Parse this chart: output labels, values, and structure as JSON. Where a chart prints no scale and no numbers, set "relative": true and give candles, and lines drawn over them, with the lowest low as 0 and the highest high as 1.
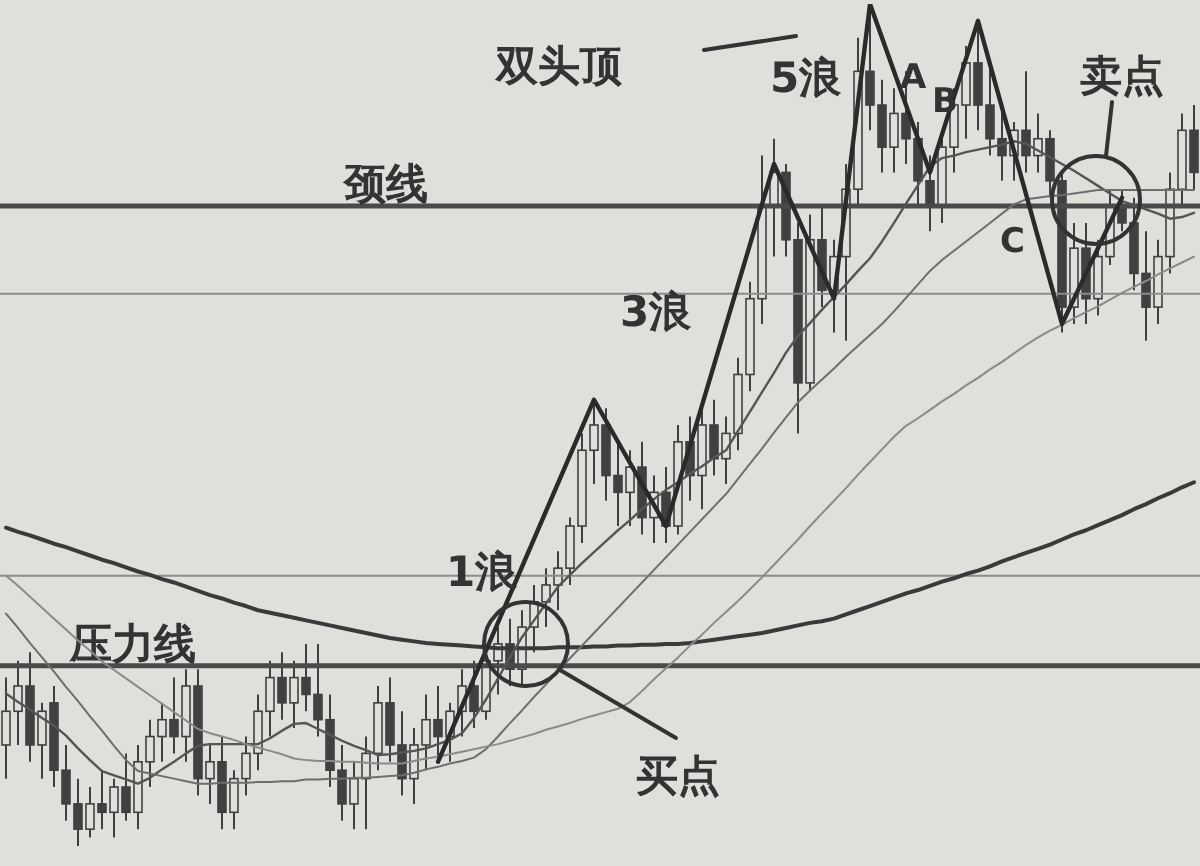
{
  "chart_data": {
    "type": "candlestick",
    "relative": true,
    "tick_labels": false,
    "color": "#404040",
    "categories": [
      null,
      null,
      null,
      null,
      null,
      null,
      null,
      null,
      null,
      null,
      null,
      null,
      null,
      null,
      null,
      null,
      null,
      null,
      null,
      null,
      null,
      null,
      null,
      null,
      null,
      null,
      null,
      null,
      null,
      null,
      null,
      null,
      null,
      null,
      null,
      null,
      null,
      null,
      null,
      null,
      null,
      null,
      null,
      null,
      null,
      null,
      null,
      null,
      null,
      null,
      null,
      null,
      null,
      null,
      null,
      null,
      null,
      null,
      null,
      null,
      null,
      null,
      null,
      null,
      null,
      null,
      null,
      null,
      null,
      null,
      null,
      null,
      null,
      null,
      null,
      null,
      null,
      null,
      null,
      null,
      null,
      null,
      null,
      null,
      null,
      null,
      null,
      null,
      null,
      null,
      null,
      null,
      null,
      null,
      null,
      null,
      null,
      null,
      null,
      null
    ],
    "ohlc": [
      [
        0.12,
        0.2,
        0.08,
        0.16
      ],
      [
        0.16,
        0.22,
        0.12,
        0.19
      ],
      [
        0.19,
        0.23,
        0.1,
        0.12
      ],
      [
        0.12,
        0.17,
        0.08,
        0.16
      ],
      [
        0.17,
        0.19,
        0.07,
        0.09
      ],
      [
        0.09,
        0.12,
        0.03,
        0.05
      ],
      [
        0.05,
        0.08,
        0,
        0.02
      ],
      [
        0.02,
        0.07,
        0.01,
        0.05
      ],
      [
        0.05,
        0.09,
        0.02,
        0.04
      ],
      [
        0.04,
        0.08,
        0.01,
        0.07
      ],
      [
        0.07,
        0.11,
        0.03,
        0.04
      ],
      [
        0.04,
        0.12,
        0.02,
        0.1
      ],
      [
        0.1,
        0.15,
        0.07,
        0.13
      ],
      [
        0.13,
        0.17,
        0.1,
        0.15
      ],
      [
        0.15,
        0.2,
        0.11,
        0.13
      ],
      [
        0.13,
        0.21,
        0.1,
        0.19
      ],
      [
        0.19,
        0.21,
        0.06,
        0.08
      ],
      [
        0.08,
        0.12,
        0.05,
        0.1
      ],
      [
        0.1,
        0.13,
        0.02,
        0.04
      ],
      [
        0.04,
        0.09,
        0.02,
        0.08
      ],
      [
        0.08,
        0.13,
        0.06,
        0.11
      ],
      [
        0.11,
        0.18,
        0.09,
        0.16
      ],
      [
        0.16,
        0.22,
        0.13,
        0.2
      ],
      [
        0.2,
        0.23,
        0.15,
        0.17
      ],
      [
        0.17,
        0.22,
        0.14,
        0.2
      ],
      [
        0.2,
        0.24,
        0.16,
        0.18
      ],
      [
        0.18,
        0.24,
        0.13,
        0.15
      ],
      [
        0.15,
        0.18,
        0.07,
        0.09
      ],
      [
        0.09,
        0.12,
        0.03,
        0.05
      ],
      [
        0.05,
        0.1,
        0.02,
        0.08
      ],
      [
        0.08,
        0.13,
        0.02,
        0.11
      ],
      [
        0.11,
        0.19,
        0.09,
        0.17
      ],
      [
        0.17,
        0.2,
        0.1,
        0.12
      ],
      [
        0.12,
        0.16,
        0.06,
        0.08
      ],
      [
        0.08,
        0.14,
        0.05,
        0.12
      ],
      [
        0.12,
        0.18,
        0.09,
        0.15
      ],
      [
        0.15,
        0.19,
        0.1,
        0.13
      ],
      [
        0.13,
        0.17,
        0.1,
        0.16
      ],
      [
        0.16,
        0.21,
        0.13,
        0.19
      ],
      [
        0.19,
        0.22,
        0.14,
        0.16
      ],
      [
        0.16,
        0.23,
        0.15,
        0.22
      ],
      [
        0.22,
        0.26,
        0.18,
        0.24
      ],
      [
        0.24,
        0.27,
        0.19,
        0.21
      ],
      [
        0.21,
        0.28,
        0.19,
        0.26
      ],
      [
        0.26,
        0.31,
        0.23,
        0.29
      ],
      [
        0.29,
        0.33,
        0.26,
        0.31
      ],
      [
        0.31,
        0.35,
        0.28,
        0.33
      ],
      [
        0.33,
        0.39,
        0.31,
        0.38
      ],
      [
        0.38,
        0.49,
        0.36,
        0.47
      ],
      [
        0.47,
        0.53,
        0.43,
        0.5
      ],
      [
        0.5,
        0.52,
        0.41,
        0.44
      ],
      [
        0.44,
        0.48,
        0.38,
        0.42
      ],
      [
        0.42,
        0.47,
        0.38,
        0.45
      ],
      [
        0.45,
        0.48,
        0.37,
        0.39
      ],
      [
        0.39,
        0.44,
        0.36,
        0.42
      ],
      [
        0.42,
        0.45,
        0.36,
        0.38
      ],
      [
        0.38,
        0.5,
        0.37,
        0.48
      ],
      [
        0.48,
        0.51,
        0.41,
        0.44
      ],
      [
        0.44,
        0.52,
        0.4,
        0.5
      ],
      [
        0.5,
        0.53,
        0.44,
        0.46
      ],
      [
        0.46,
        0.51,
        0.43,
        0.49
      ],
      [
        0.49,
        0.58,
        0.47,
        0.56
      ],
      [
        0.56,
        0.67,
        0.54,
        0.65
      ],
      [
        0.65,
        0.82,
        0.62,
        0.76
      ],
      [
        0.76,
        0.84,
        0.7,
        0.8
      ],
      [
        0.8,
        0.81,
        0.7,
        0.72
      ],
      [
        0.72,
        0.74,
        0.49,
        0.55
      ],
      [
        0.55,
        0.75,
        0.54,
        0.72
      ],
      [
        0.72,
        0.76,
        0.64,
        0.66
      ],
      [
        0.66,
        0.72,
        0.61,
        0.7
      ],
      [
        0.7,
        0.81,
        0.6,
        0.78
      ],
      [
        0.78,
        0.96,
        0.76,
        0.92
      ],
      [
        0.92,
        1,
        0.85,
        0.88
      ],
      [
        0.88,
        0.91,
        0.8,
        0.83
      ],
      [
        0.83,
        0.9,
        0.8,
        0.87
      ],
      [
        0.87,
        0.92,
        0.81,
        0.84
      ],
      [
        0.84,
        0.86,
        0.76,
        0.79
      ],
      [
        0.79,
        0.82,
        0.73,
        0.76
      ],
      [
        0.76,
        0.84,
        0.74,
        0.83
      ],
      [
        0.83,
        0.9,
        0.8,
        0.88
      ],
      [
        0.88,
        0.95,
        0.84,
        0.93
      ],
      [
        0.93,
        0.98,
        0.85,
        0.88
      ],
      [
        0.88,
        0.93,
        0.82,
        0.84
      ],
      [
        0.84,
        0.88,
        0.79,
        0.82
      ],
      [
        0.82,
        0.86,
        0.79,
        0.85
      ],
      [
        0.85,
        0.92,
        0.8,
        0.82
      ],
      [
        0.82,
        0.87,
        0.8,
        0.84
      ],
      [
        0.84,
        0.85,
        0.77,
        0.79
      ],
      [
        0.79,
        0.8,
        0.61,
        0.64
      ],
      [
        0.64,
        0.74,
        0.62,
        0.71
      ],
      [
        0.71,
        0.74,
        0.62,
        0.65
      ],
      [
        0.65,
        0.72,
        0.63,
        0.7
      ],
      [
        0.7,
        0.78,
        0.69,
        0.76
      ],
      [
        0.76,
        0.78,
        0.73,
        0.74
      ],
      [
        0.74,
        0.77,
        0.66,
        0.68
      ],
      [
        0.68,
        0.73,
        0.6,
        0.64
      ],
      [
        0.64,
        0.72,
        0.62,
        0.7
      ],
      [
        0.7,
        0.8,
        0.68,
        0.78
      ],
      [
        0.78,
        0.87,
        0.76,
        0.85
      ],
      [
        0.85,
        0.88,
        0.78,
        0.8
      ]
    ],
    "series": [
      {
        "type": "line",
        "color": "#3a3a3a",
        "values": [
          0.378,
          0.373,
          0.369,
          0.364,
          0.359,
          0.355,
          0.35,
          0.345,
          0.34,
          0.336,
          0.331,
          0.326,
          0.322,
          0.317,
          0.313,
          0.308,
          0.303,
          0.298,
          0.294,
          0.289,
          0.285,
          0.28,
          0.277,
          0.274,
          0.271,
          0.268,
          0.265,
          0.262,
          0.259,
          0.256,
          0.253,
          0.25,
          0.247,
          0.245,
          0.243,
          0.241,
          0.24,
          0.239,
          0.238,
          0.237,
          0.236,
          0.235,
          0.235,
          0.235,
          0.235,
          0.235,
          0.236,
          0.236,
          0.236,
          0.237,
          0.237,
          0.238,
          0.238,
          0.239,
          0.239,
          0.24,
          0.24,
          0.241,
          0.243,
          0.245,
          0.247,
          0.249,
          0.251,
          0.253,
          0.256,
          0.259,
          0.262,
          0.265,
          0.267,
          0.27,
          0.275,
          0.28,
          0.285,
          0.29,
          0.295,
          0.3,
          0.304,
          0.309,
          0.314,
          0.318,
          0.323,
          0.327,
          0.332,
          0.338,
          0.343,
          0.348,
          0.353,
          0.358,
          0.364,
          0.37,
          0.375,
          0.381,
          0.387,
          0.393,
          0.4,
          0.406,
          0.413,
          0.419,
          0.426,
          0.432
        ]
      },
      {
        "type": "line",
        "color": "#555555",
        "values": [
          0.181,
          0.171,
          0.162,
          0.152,
          0.143,
          0.131,
          0.116,
          0.102,
          0.089,
          0.084,
          0.079,
          0.074,
          0.081,
          0.091,
          0.1,
          0.11,
          0.119,
          0.121,
          0.121,
          0.121,
          0.121,
          0.121,
          0.128,
          0.137,
          0.145,
          0.146,
          0.139,
          0.132,
          0.125,
          0.119,
          0.114,
          0.108,
          0.109,
          0.111,
          0.113,
          0.116,
          0.121,
          0.126,
          0.134,
          0.152,
          0.174,
          0.199,
          0.224,
          0.248,
          0.268,
          0.288,
          0.308,
          0.322,
          0.336,
          0.349,
          0.362,
          0.375,
          0.387,
          0.4,
          0.412,
          0.423,
          0.432,
          0.442,
          0.451,
          0.461,
          0.47,
          0.493,
          0.516,
          0.539,
          0.562,
          0.586,
          0.606,
          0.621,
          0.637,
          0.652,
          0.667,
          0.683,
          0.698,
          0.718,
          0.74,
          0.763,
          0.785,
          0.807,
          0.817,
          0.82,
          0.824,
          0.827,
          0.83,
          0.833,
          0.837,
          0.834,
          0.826,
          0.818,
          0.81,
          0.802,
          0.793,
          0.784,
          0.775,
          0.766,
          0.761,
          0.756,
          0.751,
          0.745,
          0.747,
          0.752
        ]
      },
      {
        "type": "line",
        "color": "#6e6e6e",
        "values": [
          0.276,
          0.259,
          0.241,
          0.224,
          0.207,
          0.189,
          0.172,
          0.154,
          0.137,
          0.119,
          0.102,
          0.089,
          0.086,
          0.083,
          0.08,
          0.077,
          0.074,
          0.074,
          0.075,
          0.075,
          0.075,
          0.076,
          0.076,
          0.077,
          0.077,
          0.079,
          0.079,
          0.08,
          0.08,
          0.081,
          0.081,
          0.082,
          0.083,
          0.084,
          0.087,
          0.091,
          0.094,
          0.098,
          0.101,
          0.105,
          0.115,
          0.13,
          0.146,
          0.161,
          0.177,
          0.192,
          0.208,
          0.223,
          0.238,
          0.253,
          0.268,
          0.283,
          0.298,
          0.313,
          0.328,
          0.343,
          0.358,
          0.373,
          0.388,
          0.403,
          0.418,
          0.436,
          0.454,
          0.472,
          0.491,
          0.509,
          0.527,
          0.541,
          0.554,
          0.567,
          0.581,
          0.594,
          0.607,
          0.62,
          0.635,
          0.651,
          0.667,
          0.683,
          0.696,
          0.707,
          0.718,
          0.729,
          0.74,
          0.751,
          0.762,
          0.768,
          0.77,
          0.772,
          0.773,
          0.775,
          0.777,
          0.779,
          0.779,
          0.779,
          0.779,
          0.779,
          0.779,
          0.779,
          0.779,
          0.779
        ]
      },
      {
        "type": "line",
        "color": "#8a8a8a",
        "values": [
          0.321,
          0.309,
          0.296,
          0.283,
          0.27,
          0.257,
          0.244,
          0.232,
          0.219,
          0.209,
          0.199,
          0.189,
          0.179,
          0.169,
          0.159,
          0.149,
          0.139,
          0.134,
          0.13,
          0.126,
          0.121,
          0.117,
          0.113,
          0.109,
          0.104,
          0.102,
          0.101,
          0.101,
          0.1,
          0.1,
          0.099,
          0.098,
          0.098,
          0.098,
          0.101,
          0.104,
          0.106,
          0.109,
          0.112,
          0.115,
          0.118,
          0.121,
          0.125,
          0.129,
          0.133,
          0.138,
          0.142,
          0.146,
          0.151,
          0.155,
          0.159,
          0.163,
          0.171,
          0.184,
          0.198,
          0.211,
          0.224,
          0.238,
          0.251,
          0.265,
          0.278,
          0.291,
          0.305,
          0.319,
          0.334,
          0.349,
          0.364,
          0.38,
          0.395,
          0.41,
          0.425,
          0.441,
          0.456,
          0.471,
          0.486,
          0.499,
          0.508,
          0.518,
          0.528,
          0.537,
          0.547,
          0.556,
          0.566,
          0.575,
          0.585,
          0.595,
          0.604,
          0.612,
          0.619,
          0.627,
          0.634,
          0.641,
          0.649,
          0.657,
          0.664,
          0.671,
          0.679,
          0.686,
          0.693,
          0.7
        ]
      },
      {
        "type": "line",
        "color": "#2a2a2a",
        "values": [
          null,
          null,
          null,
          null,
          null,
          null,
          null,
          null,
          null,
          null,
          null,
          null,
          null,
          null,
          null,
          null,
          null,
          null,
          null,
          null,
          null,
          null,
          null,
          null,
          null,
          null,
          null,
          null,
          null,
          null,
          null,
          null,
          null,
          null,
          null,
          null,
          0.1,
          null,
          null,
          null,
          null,
          null,
          null,
          null,
          null,
          null,
          null,
          null,
          null,
          0.53,
          null,
          null,
          null,
          null,
          null,
          0.38,
          null,
          null,
          null,
          null,
          null,
          null,
          null,
          null,
          0.81,
          null,
          null,
          null,
          null,
          0.65,
          null,
          null,
          1,
          null,
          null,
          null,
          null,
          0.8,
          null,
          null,
          null,
          0.98,
          null,
          null,
          null,
          null,
          null,
          null,
          0.62,
          null,
          null,
          null,
          null,
          0.77,
          null,
          null,
          null,
          null,
          null,
          null
        ]
      }
    ],
    "ref_lines": [
      {
        "axis": "y",
        "value": 0.76,
        "label": "颈线",
        "color": "#4a4a4a"
      },
      {
        "axis": "y",
        "value": 0.656,
        "color": "#8c8c8c"
      },
      {
        "axis": "y",
        "value": 0.321,
        "color": "#8c8c8c"
      },
      {
        "axis": "y",
        "value": 0.214,
        "label": "压力线",
        "color": "#4a4a4a"
      }
    ],
    "annotations": [
      "双头顶",
      "5浪",
      "3浪",
      "1浪",
      "A",
      "B",
      "C",
      "买点",
      "卖点"
    ]
  }
}
